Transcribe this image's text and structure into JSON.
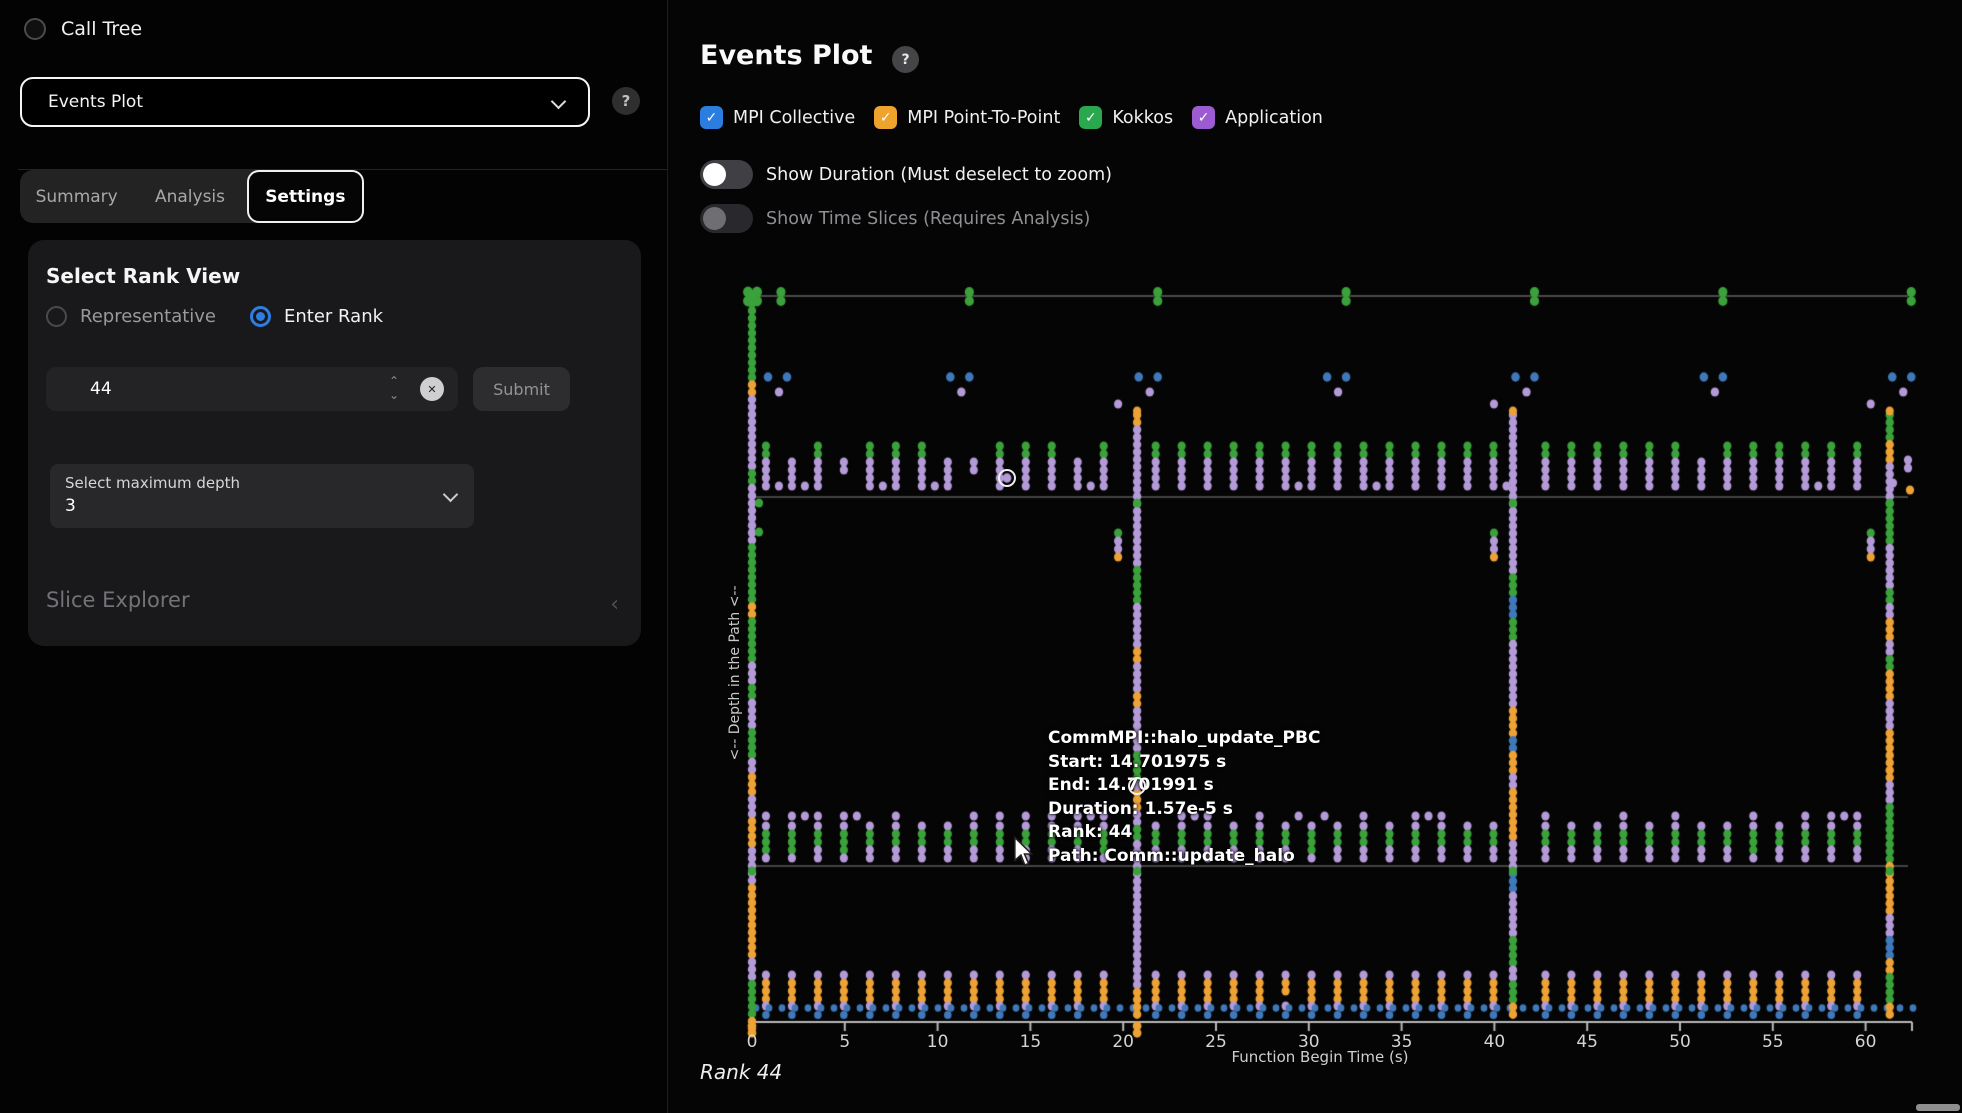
{
  "sidebar": {
    "call_tree_label": "Call Tree",
    "view_dropdown": {
      "value": "Events Plot"
    },
    "help_icon": "?",
    "tabs": [
      {
        "label": "Summary",
        "active": false
      },
      {
        "label": "Analysis",
        "active": false
      },
      {
        "label": "Settings",
        "active": true
      }
    ],
    "rank_view": {
      "title": "Select Rank View",
      "options": [
        {
          "label": "Representative",
          "selected": false
        },
        {
          "label": "Enter Rank",
          "selected": true
        }
      ],
      "rank_input": {
        "value": "44"
      },
      "clear_icon": "✕",
      "submit_label": "Submit",
      "depth_select": {
        "label": "Select maximum depth",
        "value": "3"
      }
    },
    "slice_explorer_label": "Slice Explorer",
    "slice_chevron": "‹"
  },
  "main": {
    "title": "Events Plot",
    "help_icon": "?",
    "toggles": [
      {
        "label": "Show Duration (Must deselect to zoom)",
        "on": false,
        "enabled": true
      },
      {
        "label": "Show Time Slices (Requires Analysis)",
        "on": false,
        "enabled": false
      }
    ],
    "tooltip": {
      "lines": [
        "CommMPI::halo_update_PBC",
        "Start: 14.701975 s",
        "End: 14.701991 s",
        "Duration: 1.57e-5 s",
        "Rank: 44",
        "Path: Comm::update_halo"
      ]
    },
    "footer_rank": "Rank 44"
  },
  "chart_data": {
    "type": "scatter",
    "title": "Events Plot",
    "xlabel": "Function Begin Time (s)",
    "ylabel": "<-- Depth in the Path <--",
    "x_ticks": [
      0,
      5,
      10,
      15,
      20,
      25,
      30,
      35,
      40,
      45,
      50,
      55,
      60
    ],
    "x_range_s": [
      0,
      62.5
    ],
    "legend_checkmark": "✓",
    "categories": [
      {
        "id": "mpi_collective",
        "label": "MPI Collective",
        "checkbox_color": "#2b7de0",
        "dot_color": "#3f79bb",
        "checked": true
      },
      {
        "id": "mpi_p2p",
        "label": "MPI Point-To-Point",
        "checkbox_color": "#eea32d",
        "dot_color": "#eea236",
        "checked": true
      },
      {
        "id": "kokkos",
        "label": "Kokkos",
        "checkbox_color": "#2aa84e",
        "dot_color": "#3ba23b",
        "checked": true
      },
      {
        "id": "application",
        "label": "Application",
        "checkbox_color": "#9d5bd2",
        "dot_color": "#b49bd8",
        "checked": true
      }
    ],
    "structure": {
      "top_marker_times_s": [
        0,
        1.56,
        11.71,
        21.86,
        32.01,
        42.16,
        52.31,
        62.46
      ],
      "collective_pair_times_s": [
        11.71,
        21.86,
        32.01,
        42.16,
        52.31,
        62.46
      ],
      "burst_times_s": [
        0,
        20.75,
        41.0,
        61.3
      ],
      "event_column_period_s": 1.4,
      "event_column_first_s": 0.75,
      "event_column_last_s": 62.4,
      "depth_bands": [
        {
          "name": "depth-1",
          "rows": [
            "kokkos",
            "kokkos",
            "application",
            "application",
            "application",
            "application"
          ]
        },
        {
          "name": "depth-2",
          "rows": [
            "application",
            "application",
            "kokkos",
            "kokkos",
            "application",
            "application"
          ]
        },
        {
          "name": "depth-3",
          "rows": [
            "application",
            "mpi_p2p",
            "mpi_p2p",
            "mpi_p2p",
            "application",
            "mpi_collective"
          ]
        }
      ]
    },
    "hovered_point": {
      "label": "CommMPI::halo_update_PBC",
      "start": "14.701975 s",
      "end": "14.701991 s",
      "duration": "1.57e-5 s",
      "rank": "44",
      "path": "Comm::update_halo"
    }
  }
}
